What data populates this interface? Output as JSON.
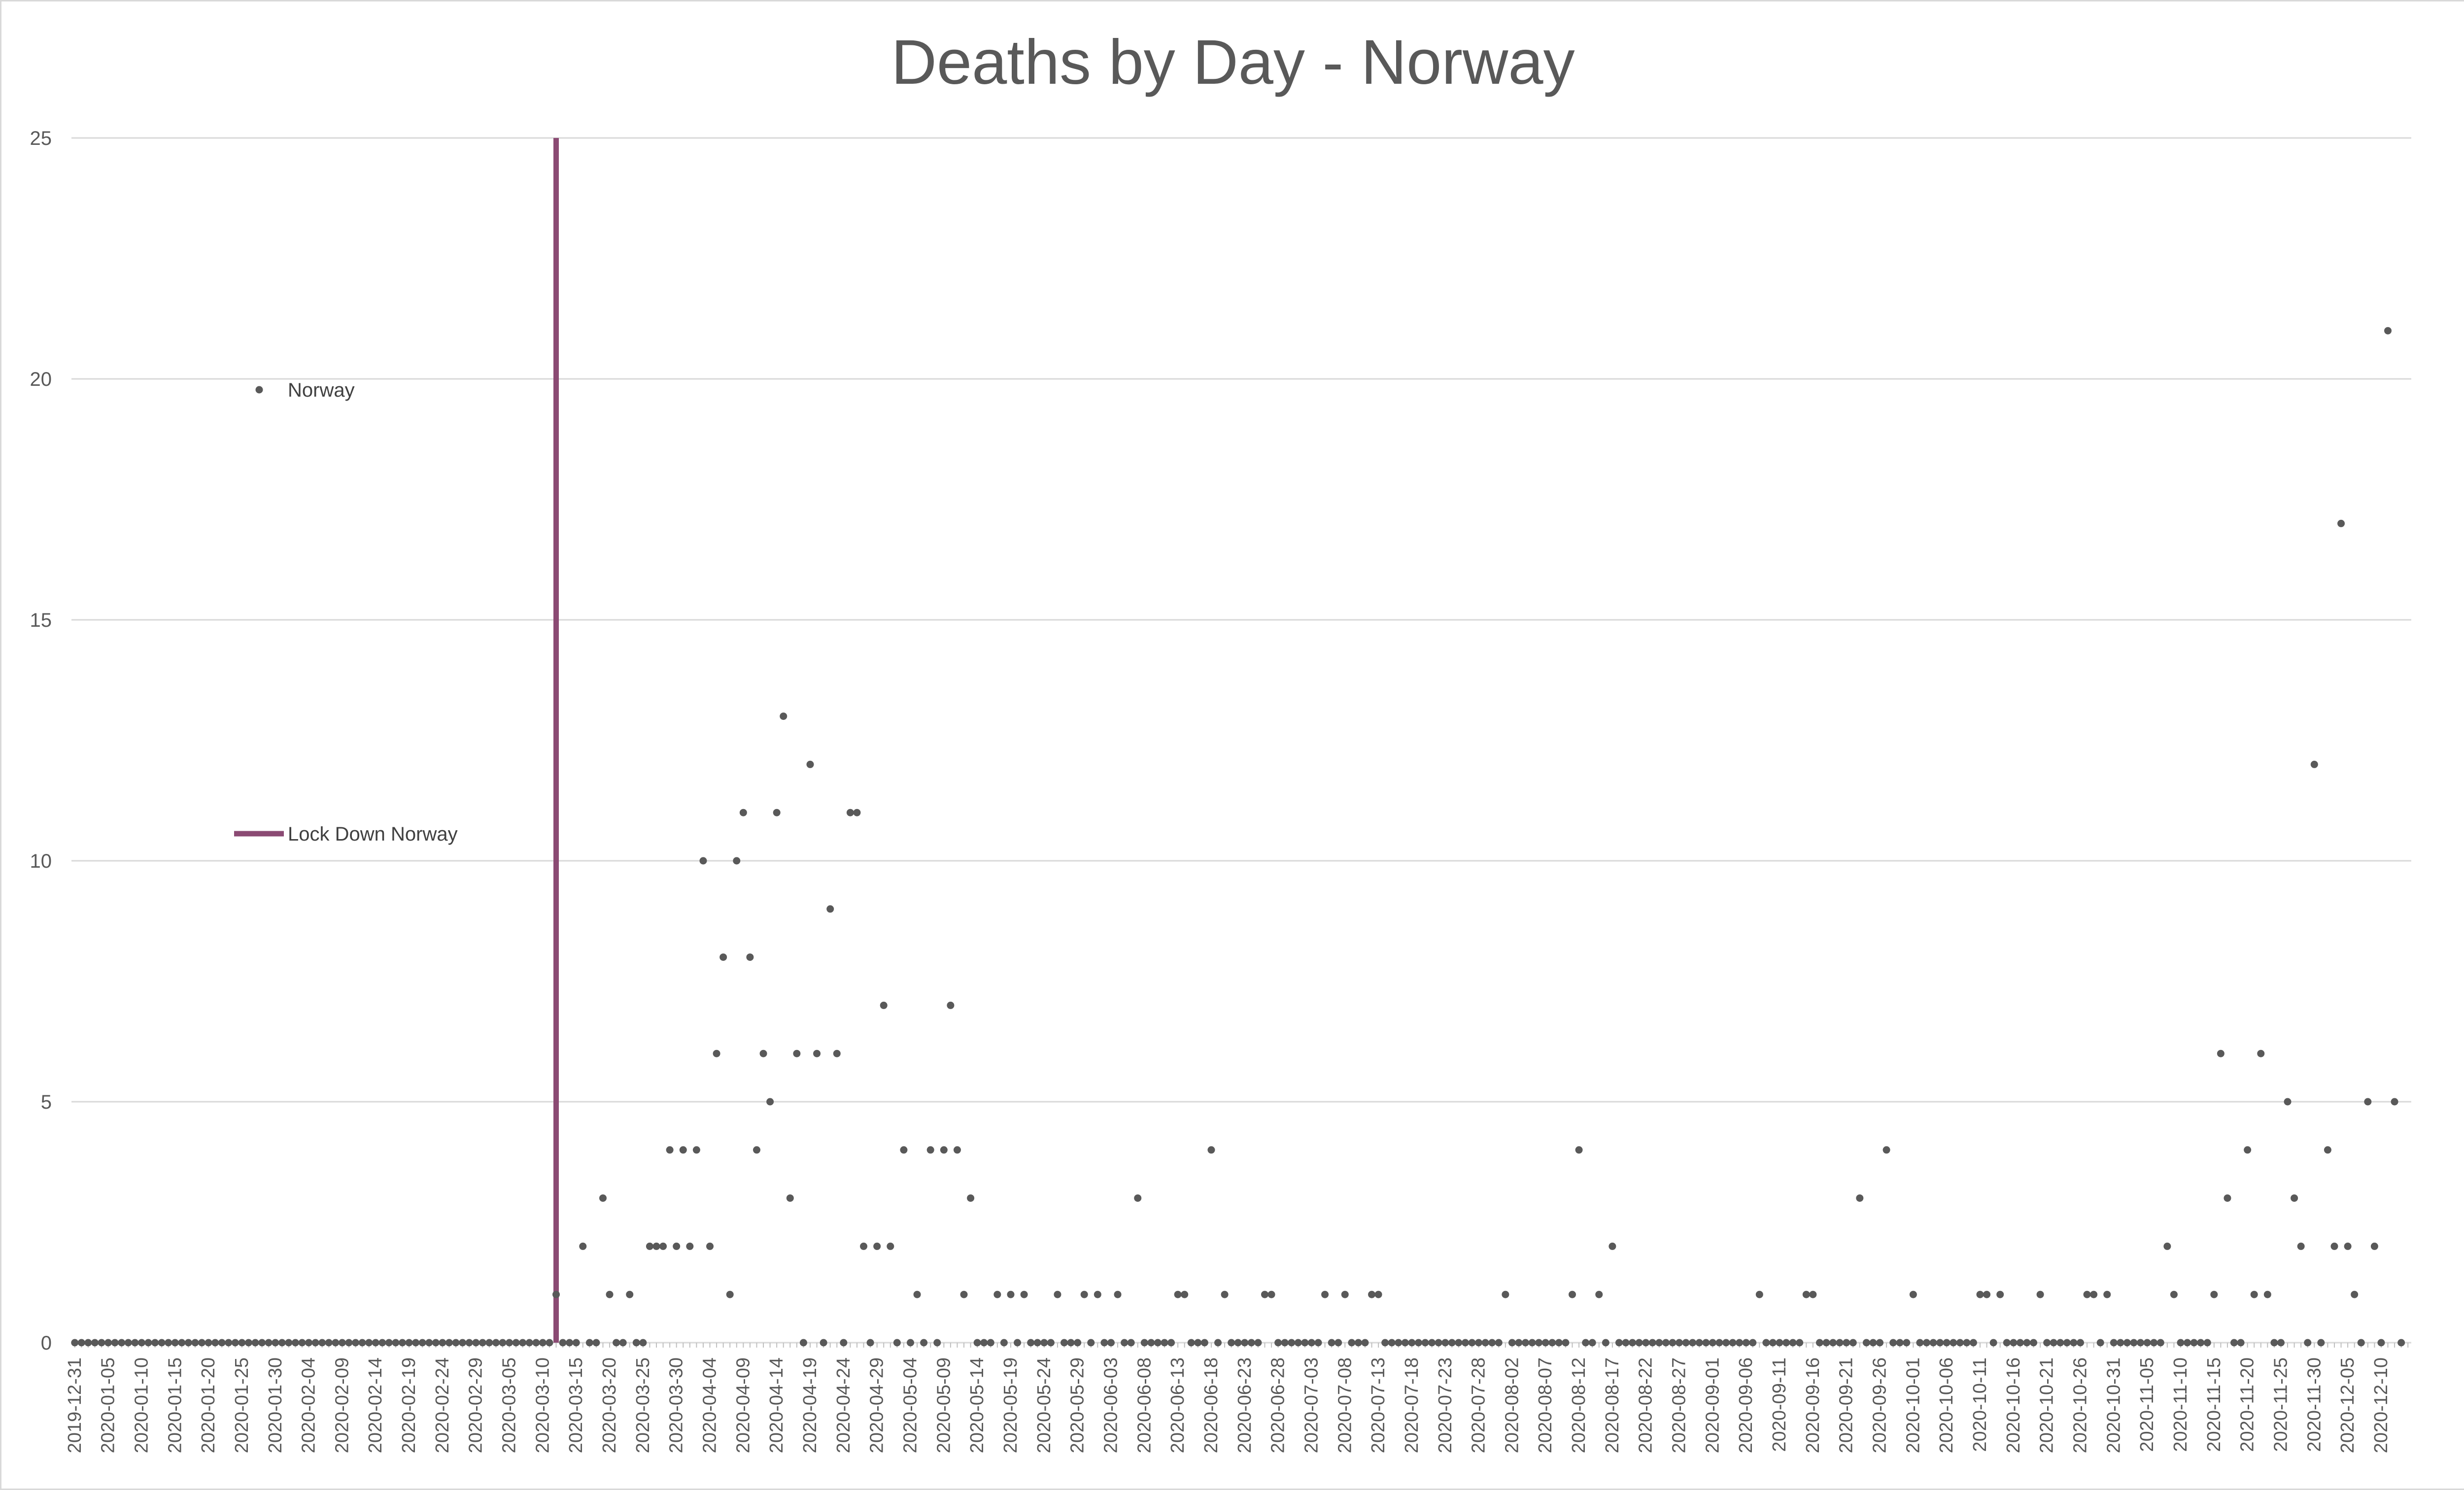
{
  "chart_data": {
    "type": "scatter",
    "title": "Deaths by Day - Norway",
    "xlabel": "",
    "ylabel": "",
    "ylim": [
      0,
      25
    ],
    "yticks": [
      0,
      5,
      10,
      15,
      20,
      25
    ],
    "grid": true,
    "legend_position": "left",
    "x_tick_labels": [
      "2019-12-31",
      "2020-01-05",
      "2020-01-10",
      "2020-01-15",
      "2020-01-20",
      "2020-01-25",
      "2020-01-30",
      "2020-02-04",
      "2020-02-09",
      "2020-02-14",
      "2020-02-19",
      "2020-02-24",
      "2020-02-29",
      "2020-03-05",
      "2020-03-10",
      "2020-03-15",
      "2020-03-20",
      "2020-03-25",
      "2020-03-30",
      "2020-04-04",
      "2020-04-09",
      "2020-04-14",
      "2020-04-19",
      "2020-04-24",
      "2020-04-29",
      "2020-05-04",
      "2020-05-09",
      "2020-05-14",
      "2020-05-19",
      "2020-05-24",
      "2020-05-29",
      "2020-06-03",
      "2020-06-08",
      "2020-06-13",
      "2020-06-18",
      "2020-06-23",
      "2020-06-28",
      "2020-07-03",
      "2020-07-08",
      "2020-07-13",
      "2020-07-18",
      "2020-07-23",
      "2020-07-28",
      "2020-08-02",
      "2020-08-07",
      "2020-08-12",
      "2020-08-17",
      "2020-08-22",
      "2020-08-27",
      "2020-09-01",
      "2020-09-06",
      "2020-09-11",
      "2020-09-16",
      "2020-09-21",
      "2020-09-26",
      "2020-10-01",
      "2020-10-06",
      "2020-10-11",
      "2020-10-16",
      "2020-10-21",
      "2020-10-26",
      "2020-10-31",
      "2020-11-05",
      "2020-11-10",
      "2020-11-15",
      "2020-11-20",
      "2020-11-25",
      "2020-11-30",
      "2020-12-05",
      "2020-12-10"
    ],
    "x": [
      "2019-12-31",
      "2020-01-01",
      "2020-01-02",
      "2020-01-03",
      "2020-01-04",
      "2020-01-05",
      "2020-01-06",
      "2020-01-07",
      "2020-01-08",
      "2020-01-09",
      "2020-01-10",
      "2020-01-11",
      "2020-01-12",
      "2020-01-13",
      "2020-01-14",
      "2020-01-15",
      "2020-01-16",
      "2020-01-17",
      "2020-01-18",
      "2020-01-19",
      "2020-01-20",
      "2020-01-21",
      "2020-01-22",
      "2020-01-23",
      "2020-01-24",
      "2020-01-25",
      "2020-01-26",
      "2020-01-27",
      "2020-01-28",
      "2020-01-29",
      "2020-01-30",
      "2020-01-31",
      "2020-02-01",
      "2020-02-02",
      "2020-02-03",
      "2020-02-04",
      "2020-02-05",
      "2020-02-06",
      "2020-02-07",
      "2020-02-08",
      "2020-02-09",
      "2020-02-10",
      "2020-02-11",
      "2020-02-12",
      "2020-02-13",
      "2020-02-14",
      "2020-02-15",
      "2020-02-16",
      "2020-02-17",
      "2020-02-18",
      "2020-02-19",
      "2020-02-20",
      "2020-02-21",
      "2020-02-22",
      "2020-02-23",
      "2020-02-24",
      "2020-02-25",
      "2020-02-26",
      "2020-02-27",
      "2020-02-28",
      "2020-02-29",
      "2020-03-01",
      "2020-03-02",
      "2020-03-03",
      "2020-03-04",
      "2020-03-05",
      "2020-03-06",
      "2020-03-07",
      "2020-03-08",
      "2020-03-09",
      "2020-03-10",
      "2020-03-11",
      "2020-03-12",
      "2020-03-13",
      "2020-03-14",
      "2020-03-15",
      "2020-03-16",
      "2020-03-17",
      "2020-03-18",
      "2020-03-19",
      "2020-03-20",
      "2020-03-21",
      "2020-03-22",
      "2020-03-23",
      "2020-03-24",
      "2020-03-25",
      "2020-03-26",
      "2020-03-27",
      "2020-03-28",
      "2020-03-29",
      "2020-03-30",
      "2020-03-31",
      "2020-04-01",
      "2020-04-02",
      "2020-04-03",
      "2020-04-04",
      "2020-04-05",
      "2020-04-06",
      "2020-04-07",
      "2020-04-08",
      "2020-04-09",
      "2020-04-10",
      "2020-04-11",
      "2020-04-12",
      "2020-04-13",
      "2020-04-14",
      "2020-04-15",
      "2020-04-16",
      "2020-04-17",
      "2020-04-18",
      "2020-04-19",
      "2020-04-20",
      "2020-04-21",
      "2020-04-22",
      "2020-04-23",
      "2020-04-24",
      "2020-04-25",
      "2020-04-26",
      "2020-04-27",
      "2020-04-28",
      "2020-04-29",
      "2020-04-30",
      "2020-05-01",
      "2020-05-02",
      "2020-05-03",
      "2020-05-04",
      "2020-05-05",
      "2020-05-06",
      "2020-05-07",
      "2020-05-08",
      "2020-05-09",
      "2020-05-10",
      "2020-05-11",
      "2020-05-12",
      "2020-05-13",
      "2020-05-14",
      "2020-05-15",
      "2020-05-16",
      "2020-05-17",
      "2020-05-18",
      "2020-05-19",
      "2020-05-20",
      "2020-05-21",
      "2020-05-22",
      "2020-05-23",
      "2020-05-24",
      "2020-05-25",
      "2020-05-26",
      "2020-05-27",
      "2020-05-28",
      "2020-05-29",
      "2020-05-30",
      "2020-05-31",
      "2020-06-01",
      "2020-06-02",
      "2020-06-03",
      "2020-06-04",
      "2020-06-05",
      "2020-06-06",
      "2020-06-07",
      "2020-06-08",
      "2020-06-09",
      "2020-06-10",
      "2020-06-11",
      "2020-06-12",
      "2020-06-13",
      "2020-06-14",
      "2020-06-15",
      "2020-06-16",
      "2020-06-17",
      "2020-06-18",
      "2020-06-19",
      "2020-06-20",
      "2020-06-21",
      "2020-06-22",
      "2020-06-23",
      "2020-06-24",
      "2020-06-25",
      "2020-06-26",
      "2020-06-27",
      "2020-06-28",
      "2020-06-29",
      "2020-06-30",
      "2020-07-01",
      "2020-07-02",
      "2020-07-03",
      "2020-07-04",
      "2020-07-05",
      "2020-07-06",
      "2020-07-07",
      "2020-07-08",
      "2020-07-09",
      "2020-07-10",
      "2020-07-11",
      "2020-07-12",
      "2020-07-13",
      "2020-07-14",
      "2020-07-15",
      "2020-07-16",
      "2020-07-17",
      "2020-07-18",
      "2020-07-19",
      "2020-07-20",
      "2020-07-21",
      "2020-07-22",
      "2020-07-23",
      "2020-07-24",
      "2020-07-25",
      "2020-07-26",
      "2020-07-27",
      "2020-07-28",
      "2020-07-29",
      "2020-07-30",
      "2020-07-31",
      "2020-08-01",
      "2020-08-02",
      "2020-08-03",
      "2020-08-04",
      "2020-08-05",
      "2020-08-06",
      "2020-08-07",
      "2020-08-08",
      "2020-08-09",
      "2020-08-10",
      "2020-08-11",
      "2020-08-12",
      "2020-08-13",
      "2020-08-14",
      "2020-08-15",
      "2020-08-16",
      "2020-08-17",
      "2020-08-18",
      "2020-08-19",
      "2020-08-20",
      "2020-08-21",
      "2020-08-22",
      "2020-08-23",
      "2020-08-24",
      "2020-08-25",
      "2020-08-26",
      "2020-08-27",
      "2020-08-28",
      "2020-08-29",
      "2020-08-30",
      "2020-08-31",
      "2020-09-01",
      "2020-09-02",
      "2020-09-03",
      "2020-09-04",
      "2020-09-05",
      "2020-09-06",
      "2020-09-07",
      "2020-09-08",
      "2020-09-09",
      "2020-09-10",
      "2020-09-11",
      "2020-09-12",
      "2020-09-13",
      "2020-09-14",
      "2020-09-15",
      "2020-09-16",
      "2020-09-17",
      "2020-09-18",
      "2020-09-19",
      "2020-09-20",
      "2020-09-21",
      "2020-09-22",
      "2020-09-23",
      "2020-09-24",
      "2020-09-25",
      "2020-09-26",
      "2020-09-27",
      "2020-09-28",
      "2020-09-29",
      "2020-09-30",
      "2020-10-01",
      "2020-10-02",
      "2020-10-03",
      "2020-10-04",
      "2020-10-05",
      "2020-10-06",
      "2020-10-07",
      "2020-10-08",
      "2020-10-09",
      "2020-10-10",
      "2020-10-11",
      "2020-10-12",
      "2020-10-13",
      "2020-10-14",
      "2020-10-15",
      "2020-10-16",
      "2020-10-17",
      "2020-10-18",
      "2020-10-19",
      "2020-10-20",
      "2020-10-21",
      "2020-10-22",
      "2020-10-23",
      "2020-10-24",
      "2020-10-25",
      "2020-10-26",
      "2020-10-27",
      "2020-10-28",
      "2020-10-29",
      "2020-10-30",
      "2020-10-31",
      "2020-11-01",
      "2020-11-02",
      "2020-11-03",
      "2020-11-04",
      "2020-11-05",
      "2020-11-06",
      "2020-11-07",
      "2020-11-08",
      "2020-11-09",
      "2020-11-10",
      "2020-11-11",
      "2020-11-12",
      "2020-11-13",
      "2020-11-14",
      "2020-11-15",
      "2020-11-16",
      "2020-11-17",
      "2020-11-18",
      "2020-11-19",
      "2020-11-20",
      "2020-11-21",
      "2020-11-22",
      "2020-11-23",
      "2020-11-24",
      "2020-11-25",
      "2020-11-26",
      "2020-11-27",
      "2020-11-28",
      "2020-11-29",
      "2020-11-30",
      "2020-12-01",
      "2020-12-02",
      "2020-12-03",
      "2020-12-04",
      "2020-12-05",
      "2020-12-06",
      "2020-12-07",
      "2020-12-08",
      "2020-12-09",
      "2020-12-10",
      "2020-12-11",
      "2020-12-12",
      "2020-12-13",
      "2020-12-14"
    ],
    "series": [
      {
        "name": "Norway",
        "color": "#595959",
        "marker": "dot",
        "values": [
          0,
          0,
          0,
          0,
          0,
          0,
          0,
          0,
          0,
          0,
          0,
          0,
          0,
          0,
          0,
          0,
          0,
          0,
          0,
          0,
          0,
          0,
          0,
          0,
          0,
          0,
          0,
          0,
          0,
          0,
          0,
          0,
          0,
          0,
          0,
          0,
          0,
          0,
          0,
          0,
          0,
          0,
          0,
          0,
          0,
          0,
          0,
          0,
          0,
          0,
          0,
          0,
          0,
          0,
          0,
          0,
          0,
          0,
          0,
          0,
          0,
          0,
          0,
          0,
          0,
          0,
          0,
          0,
          0,
          0,
          0,
          0,
          1,
          0,
          0,
          0,
          2,
          0,
          0,
          3,
          1,
          0,
          0,
          1,
          0,
          0,
          2,
          2,
          2,
          4,
          2,
          4,
          2,
          4,
          10,
          2,
          6,
          8,
          1,
          10,
          11,
          8,
          4,
          6,
          5,
          11,
          13,
          3,
          6,
          0,
          12,
          6,
          0,
          9,
          6,
          0,
          11,
          11,
          2,
          0,
          2,
          7,
          2,
          0,
          4,
          0,
          1,
          0,
          4,
          0,
          4,
          7,
          4,
          1,
          3,
          0,
          0,
          0,
          1,
          0,
          1,
          0,
          1,
          0,
          0,
          0,
          0,
          1,
          0,
          0,
          0,
          1,
          0,
          1,
          0,
          0,
          1,
          0,
          0,
          3,
          0,
          0,
          0,
          0,
          0,
          1,
          1,
          0,
          0,
          0,
          4,
          0,
          1,
          0,
          0,
          0,
          0,
          0,
          1,
          1,
          0,
          0,
          0,
          0,
          0,
          0,
          0,
          1,
          0,
          0,
          1,
          0,
          0,
          0,
          1,
          1,
          0,
          0,
          0,
          0,
          0,
          0,
          0,
          0,
          0,
          0,
          0,
          0,
          0,
          0,
          0,
          0,
          0,
          0,
          1,
          0,
          0,
          0,
          0,
          0,
          0,
          0,
          0,
          0,
          1,
          4,
          0,
          0,
          1,
          0,
          2,
          0,
          0,
          0,
          0,
          0,
          0,
          0,
          0,
          0,
          0,
          0,
          0,
          0,
          0,
          0,
          0,
          0,
          0,
          0,
          0,
          0,
          1,
          0,
          0,
          0,
          0,
          0,
          0,
          1,
          1,
          0,
          0,
          0,
          0,
          0,
          0,
          3,
          0,
          0,
          0,
          4,
          0,
          0,
          0,
          1,
          0,
          0,
          0,
          0,
          0,
          0,
          0,
          0,
          0,
          1,
          1,
          0,
          1,
          0,
          0,
          0,
          0,
          0,
          1,
          0,
          0,
          0,
          0,
          0,
          0,
          1,
          1,
          0,
          1,
          0,
          0,
          0,
          0,
          0,
          0,
          0,
          0,
          2,
          1,
          0,
          0,
          0,
          0,
          0,
          1,
          6,
          3,
          0,
          0,
          4,
          1,
          6,
          1,
          0,
          0,
          5,
          3,
          2,
          0,
          12,
          0,
          4,
          2,
          17,
          2,
          1,
          0,
          5,
          2,
          0,
          21,
          5,
          0
        ]
      },
      {
        "name": "Lock Down Norway",
        "color": "#8b4a73",
        "type": "vertical-line",
        "x": "2020-03-12",
        "y_range": [
          0,
          25
        ]
      }
    ]
  }
}
